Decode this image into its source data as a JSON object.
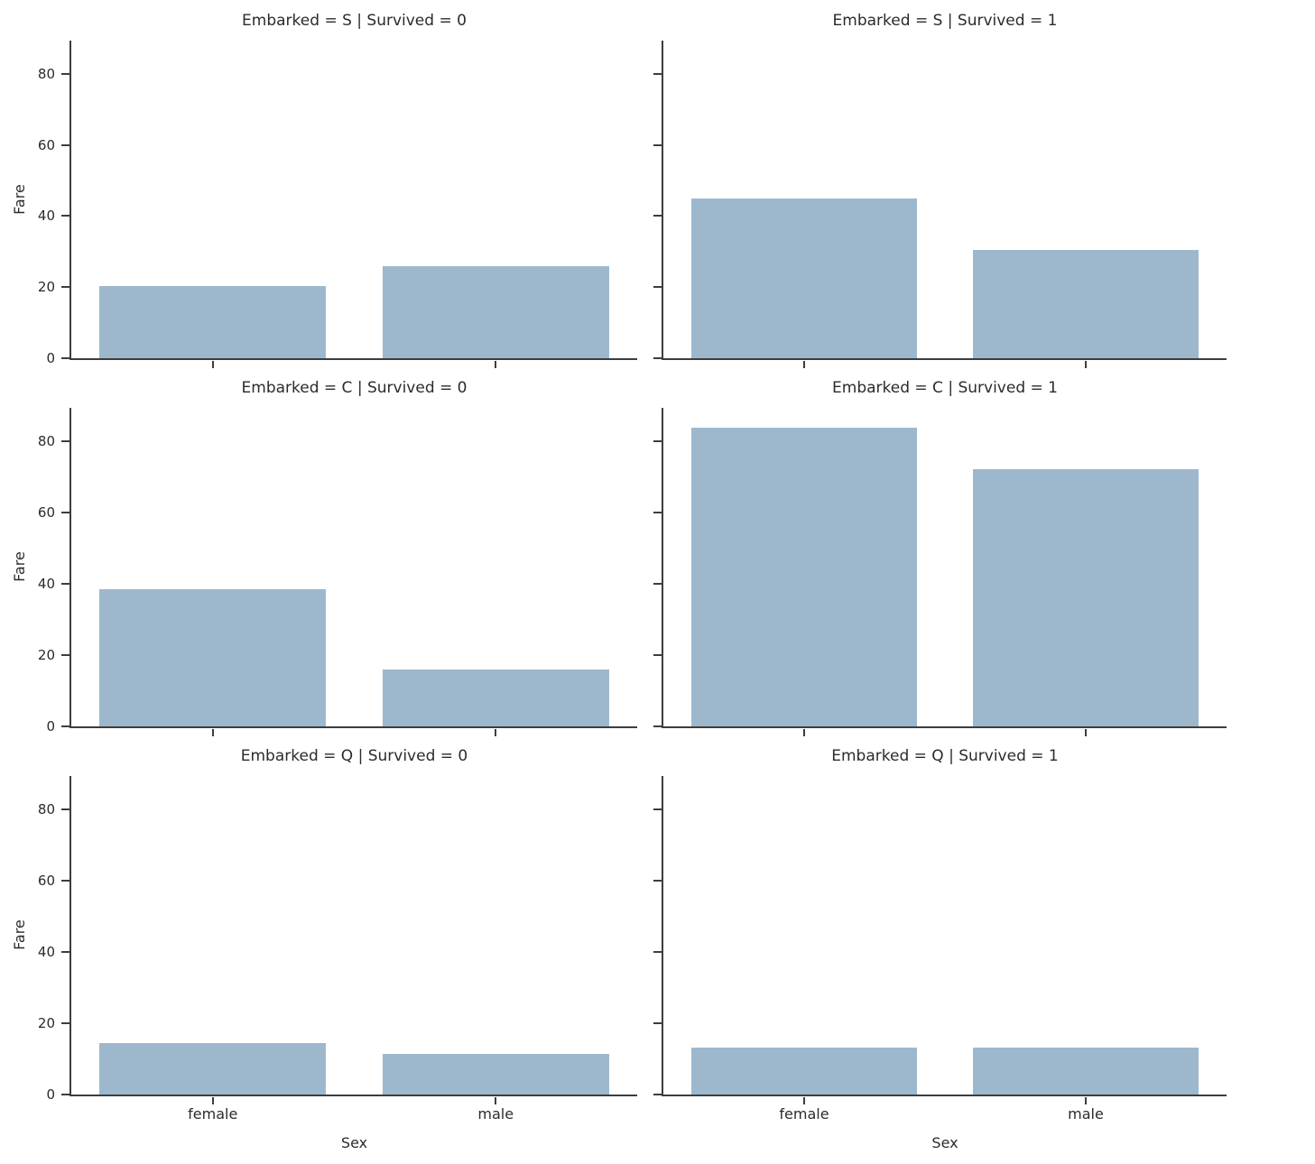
{
  "figure": {
    "background": "#ffffff",
    "bar_color": "#9db8cd",
    "spine_color": "#3d3d3d",
    "text_color": "#2b2b2b"
  },
  "chart_data": {
    "type": "bar",
    "description": "Seaborn-style facet grid of bar charts: mean Fare by Sex, faceted by Embarked (rows S, C, Q) and Survived (columns 0, 1)",
    "facet": {
      "row_var": "Embarked",
      "row_values": [
        "S",
        "C",
        "Q"
      ],
      "col_var": "Survived",
      "col_values": [
        "0",
        "1"
      ]
    },
    "categories": [
      "female",
      "male"
    ],
    "xlabel": "Sex",
    "ylabel": "Fare",
    "yticks": [
      0,
      20,
      40,
      60,
      80
    ],
    "ylim": [
      0,
      89.3
    ],
    "grid": false,
    "legend": "none",
    "panels": [
      {
        "title": "Embarked = S | Survived = 0",
        "row": "S",
        "col": "0",
        "values": [
          20.2,
          25.9
        ]
      },
      {
        "title": "Embarked = S | Survived = 1",
        "row": "S",
        "col": "1",
        "values": [
          45.0,
          30.4
        ]
      },
      {
        "title": "Embarked = C | Survived = 0",
        "row": "C",
        "col": "0",
        "values": [
          38.5,
          16.0
        ]
      },
      {
        "title": "Embarked = C | Survived = 1",
        "row": "C",
        "col": "1",
        "values": [
          83.7,
          72.2
        ]
      },
      {
        "title": "Embarked = Q | Survived = 0",
        "row": "Q",
        "col": "0",
        "values": [
          14.3,
          11.3
        ]
      },
      {
        "title": "Embarked = Q | Survived = 1",
        "row": "Q",
        "col": "1",
        "values": [
          13.1,
          13.1
        ]
      }
    ]
  }
}
